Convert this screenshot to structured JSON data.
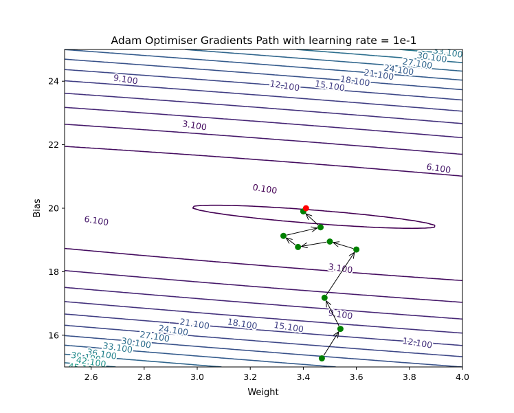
{
  "chart_data": {
    "type": "contour",
    "title": "Adam Optimiser Gradients Path with learning rate = 1e-1",
    "xlabel": "Weight",
    "ylabel": "Bias",
    "xlim": [
      2.5,
      4.0
    ],
    "ylim": [
      15.0,
      25.0
    ],
    "xticks": [
      "2.6",
      "2.8",
      "3.0",
      "3.2",
      "3.4",
      "3.6",
      "3.8",
      "4.0"
    ],
    "yticks": [
      "16",
      "18",
      "20",
      "22",
      "24"
    ],
    "grid": false,
    "loss_surface": {
      "w_center": 3.44,
      "b_center": 19.73,
      "a": 0.7,
      "b": 1.43,
      "c": 1.1,
      "min_loss": 0.05
    },
    "contour_levels": [
      0.1,
      3.1,
      6.1,
      9.1,
      12.1,
      15.1,
      18.1,
      21.1,
      24.1,
      27.1,
      30.1,
      33.1,
      36.1,
      39.1,
      42.1,
      45.1
    ],
    "contour_labels": [
      {
        "text": "0.100",
        "level": 0.1,
        "w": 3.255,
        "b": 20.6
      },
      {
        "text": "3.100",
        "level": 3.1,
        "w": 2.99,
        "b": 22.6
      },
      {
        "text": "3.100",
        "level": 3.1,
        "w": 3.54,
        "b": 18.1
      },
      {
        "text": "6.100",
        "level": 6.1,
        "w": 2.62,
        "b": 19.6
      },
      {
        "text": "6.100",
        "level": 6.1,
        "w": 3.91,
        "b": 21.25
      },
      {
        "text": "9.100",
        "level": 9.1,
        "w": 2.73,
        "b": 24.05
      },
      {
        "text": "9.100",
        "level": 9.1,
        "w": 3.54,
        "b": 16.65
      },
      {
        "text": "12.100",
        "level": 12.1,
        "w": 3.33,
        "b": 23.85
      },
      {
        "text": "12.100",
        "level": 12.1,
        "w": 3.83,
        "b": 15.75
      },
      {
        "text": "15.100",
        "level": 15.1,
        "w": 3.5,
        "b": 23.85
      },
      {
        "text": "15.100",
        "level": 15.1,
        "w": 3.345,
        "b": 16.25
      },
      {
        "text": "18.100",
        "level": 18.1,
        "w": 3.595,
        "b": 24.0
      },
      {
        "text": "18.100",
        "level": 18.1,
        "w": 3.17,
        "b": 16.35
      },
      {
        "text": "21.100",
        "level": 21.1,
        "w": 3.685,
        "b": 24.2
      },
      {
        "text": "21.100",
        "level": 21.1,
        "w": 2.99,
        "b": 16.35
      },
      {
        "text": "24.100",
        "level": 24.1,
        "w": 3.76,
        "b": 24.35
      },
      {
        "text": "24.100",
        "level": 24.1,
        "w": 2.91,
        "b": 16.15
      },
      {
        "text": "27.100",
        "level": 27.1,
        "w": 3.83,
        "b": 24.55
      },
      {
        "text": "27.100",
        "level": 27.1,
        "w": 2.84,
        "b": 15.95
      },
      {
        "text": "30.100",
        "level": 30.1,
        "w": 3.885,
        "b": 24.75
      },
      {
        "text": "30.100",
        "level": 30.1,
        "w": 2.77,
        "b": 15.75
      },
      {
        "text": "33.100",
        "level": 33.1,
        "w": 3.945,
        "b": 24.9
      },
      {
        "text": "33.100",
        "level": 33.1,
        "w": 2.7,
        "b": 15.6
      },
      {
        "text": "36.100",
        "level": 36.1,
        "w": 2.64,
        "b": 15.4
      },
      {
        "text": "39.100",
        "level": 39.1,
        "w": 2.58,
        "b": 15.3
      },
      {
        "text": "42.100",
        "level": 42.1,
        "w": 2.6,
        "b": 15.15
      },
      {
        "text": "45.100",
        "level": 45.1,
        "w": 2.57,
        "b": 14.95
      }
    ],
    "path": [
      {
        "w": 3.47,
        "b": 15.27
      },
      {
        "w": 3.54,
        "b": 16.2
      },
      {
        "w": 3.48,
        "b": 17.18
      },
      {
        "w": 3.6,
        "b": 18.7
      },
      {
        "w": 3.5,
        "b": 18.95
      },
      {
        "w": 3.38,
        "b": 18.78
      },
      {
        "w": 3.325,
        "b": 19.13
      },
      {
        "w": 3.465,
        "b": 19.4
      },
      {
        "w": 3.4,
        "b": 19.9
      }
    ],
    "path_color": "#008000",
    "minimum_point": {
      "w": 3.41,
      "b": 20.0
    },
    "minimum_color": "#ff0000",
    "colormap": "viridis"
  }
}
